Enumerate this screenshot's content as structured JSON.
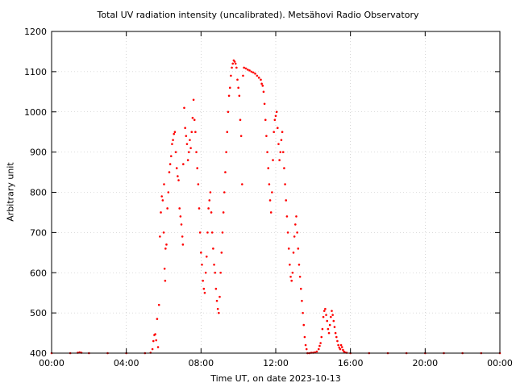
{
  "chart_data": {
    "type": "scatter",
    "title": "Total UV radiation intensity (uncalibrated). Metsähovi Radio Observatory",
    "xlabel": "Time UT, on date 2023-10-13",
    "ylabel": "Arbitrary unit",
    "xlim": [
      0,
      24
    ],
    "ylim": [
      400,
      1200
    ],
    "x_unit": "hours UT",
    "x_ticks": [
      0,
      4,
      8,
      12,
      16,
      20,
      24
    ],
    "x_tick_labels": [
      "00:00",
      "04:00",
      "08:00",
      "12:00",
      "16:00",
      "20:00",
      "00:00"
    ],
    "y_ticks": [
      400,
      500,
      600,
      700,
      800,
      900,
      1000,
      1100,
      1200
    ],
    "y_tick_labels": [
      "400",
      "500",
      "600",
      "700",
      "800",
      "900",
      "1000",
      "1100",
      "1200"
    ],
    "grid": true,
    "legend": "none",
    "series": [
      {
        "color": "#ff0000",
        "points": [
          [
            0.0,
            400
          ],
          [
            1.0,
            400
          ],
          [
            1.4,
            401
          ],
          [
            1.5,
            402
          ],
          [
            1.6,
            401
          ],
          [
            2.0,
            400
          ],
          [
            3.0,
            400
          ],
          [
            4.0,
            400
          ],
          [
            5.0,
            400
          ],
          [
            5.3,
            401
          ],
          [
            5.4,
            410
          ],
          [
            5.45,
            430
          ],
          [
            5.5,
            445
          ],
          [
            5.55,
            447
          ],
          [
            5.6,
            432
          ],
          [
            5.65,
            485
          ],
          [
            5.7,
            415
          ],
          [
            5.75,
            520
          ],
          [
            5.8,
            690
          ],
          [
            5.85,
            750
          ],
          [
            5.9,
            790
          ],
          [
            5.95,
            780
          ],
          [
            6.0,
            700
          ],
          [
            6.02,
            820
          ],
          [
            6.05,
            610
          ],
          [
            6.08,
            580
          ],
          [
            6.1,
            660
          ],
          [
            6.15,
            670
          ],
          [
            6.2,
            760
          ],
          [
            6.25,
            800
          ],
          [
            6.3,
            850
          ],
          [
            6.35,
            870
          ],
          [
            6.4,
            890
          ],
          [
            6.45,
            920
          ],
          [
            6.5,
            930
          ],
          [
            6.55,
            945
          ],
          [
            6.6,
            950
          ],
          [
            6.65,
            900
          ],
          [
            6.7,
            860
          ],
          [
            6.75,
            840
          ],
          [
            6.8,
            830
          ],
          [
            6.85,
            760
          ],
          [
            6.9,
            740
          ],
          [
            6.95,
            720
          ],
          [
            7.0,
            690
          ],
          [
            7.03,
            670
          ],
          [
            7.05,
            870
          ],
          [
            7.1,
            1010
          ],
          [
            7.15,
            960
          ],
          [
            7.2,
            940
          ],
          [
            7.25,
            920
          ],
          [
            7.3,
            880
          ],
          [
            7.35,
            900
          ],
          [
            7.4,
            930
          ],
          [
            7.45,
            910
          ],
          [
            7.5,
            950
          ],
          [
            7.55,
            985
          ],
          [
            7.6,
            1030
          ],
          [
            7.65,
            980
          ],
          [
            7.7,
            950
          ],
          [
            7.75,
            900
          ],
          [
            7.8,
            860
          ],
          [
            7.85,
            820
          ],
          [
            7.9,
            760
          ],
          [
            7.95,
            700
          ],
          [
            8.0,
            650
          ],
          [
            8.05,
            620
          ],
          [
            8.1,
            580
          ],
          [
            8.15,
            560
          ],
          [
            8.2,
            550
          ],
          [
            8.25,
            600
          ],
          [
            8.3,
            640
          ],
          [
            8.35,
            700
          ],
          [
            8.4,
            760
          ],
          [
            8.45,
            780
          ],
          [
            8.5,
            800
          ],
          [
            8.55,
            750
          ],
          [
            8.6,
            700
          ],
          [
            8.65,
            660
          ],
          [
            8.7,
            620
          ],
          [
            8.75,
            600
          ],
          [
            8.8,
            560
          ],
          [
            8.85,
            530
          ],
          [
            8.9,
            510
          ],
          [
            8.95,
            500
          ],
          [
            9.0,
            540
          ],
          [
            9.05,
            600
          ],
          [
            9.1,
            650
          ],
          [
            9.15,
            700
          ],
          [
            9.2,
            750
          ],
          [
            9.25,
            800
          ],
          [
            9.3,
            850
          ],
          [
            9.35,
            900
          ],
          [
            9.4,
            950
          ],
          [
            9.45,
            1000
          ],
          [
            9.5,
            1040
          ],
          [
            9.55,
            1060
          ],
          [
            9.6,
            1090
          ],
          [
            9.65,
            1110
          ],
          [
            9.7,
            1120
          ],
          [
            9.75,
            1128
          ],
          [
            9.8,
            1125
          ],
          [
            9.85,
            1120
          ],
          [
            9.9,
            1110
          ],
          [
            9.95,
            1080
          ],
          [
            10.0,
            1060
          ],
          [
            10.05,
            1040
          ],
          [
            10.1,
            980
          ],
          [
            10.15,
            940
          ],
          [
            10.2,
            820
          ],
          [
            10.25,
            1090
          ],
          [
            10.3,
            1110
          ],
          [
            10.4,
            1108
          ],
          [
            10.5,
            1105
          ],
          [
            10.6,
            1103
          ],
          [
            10.7,
            1100
          ],
          [
            10.8,
            1098
          ],
          [
            10.9,
            1095
          ],
          [
            11.0,
            1090
          ],
          [
            11.1,
            1085
          ],
          [
            11.2,
            1080
          ],
          [
            11.25,
            1070
          ],
          [
            11.3,
            1065
          ],
          [
            11.35,
            1050
          ],
          [
            11.4,
            1020
          ],
          [
            11.45,
            980
          ],
          [
            11.5,
            940
          ],
          [
            11.55,
            900
          ],
          [
            11.6,
            860
          ],
          [
            11.65,
            820
          ],
          [
            11.7,
            780
          ],
          [
            11.75,
            750
          ],
          [
            11.8,
            800
          ],
          [
            11.85,
            880
          ],
          [
            11.9,
            950
          ],
          [
            11.95,
            980
          ],
          [
            12.0,
            990
          ],
          [
            12.05,
            1000
          ],
          [
            12.1,
            960
          ],
          [
            12.15,
            920
          ],
          [
            12.2,
            880
          ],
          [
            12.25,
            900
          ],
          [
            12.3,
            930
          ],
          [
            12.35,
            950
          ],
          [
            12.4,
            900
          ],
          [
            12.45,
            860
          ],
          [
            12.5,
            820
          ],
          [
            12.55,
            780
          ],
          [
            12.6,
            740
          ],
          [
            12.65,
            700
          ],
          [
            12.7,
            660
          ],
          [
            12.75,
            620
          ],
          [
            12.8,
            590
          ],
          [
            12.85,
            580
          ],
          [
            12.9,
            600
          ],
          [
            12.95,
            650
          ],
          [
            13.0,
            690
          ],
          [
            13.05,
            720
          ],
          [
            13.1,
            740
          ],
          [
            13.15,
            700
          ],
          [
            13.2,
            660
          ],
          [
            13.25,
            620
          ],
          [
            13.3,
            590
          ],
          [
            13.35,
            560
          ],
          [
            13.4,
            530
          ],
          [
            13.45,
            500
          ],
          [
            13.5,
            470
          ],
          [
            13.55,
            440
          ],
          [
            13.6,
            420
          ],
          [
            13.65,
            410
          ],
          [
            13.7,
            400
          ],
          [
            13.8,
            400
          ],
          [
            13.9,
            401
          ],
          [
            14.0,
            401
          ],
          [
            14.1,
            402
          ],
          [
            14.2,
            404
          ],
          [
            14.3,
            410
          ],
          [
            14.35,
            418
          ],
          [
            14.4,
            425
          ],
          [
            14.45,
            440
          ],
          [
            14.5,
            460
          ],
          [
            14.55,
            490
          ],
          [
            14.6,
            505
          ],
          [
            14.65,
            510
          ],
          [
            14.7,
            495
          ],
          [
            14.75,
            480
          ],
          [
            14.8,
            460
          ],
          [
            14.85,
            450
          ],
          [
            14.9,
            470
          ],
          [
            14.95,
            490
          ],
          [
            15.0,
            505
          ],
          [
            15.05,
            495
          ],
          [
            15.1,
            480
          ],
          [
            15.15,
            465
          ],
          [
            15.2,
            450
          ],
          [
            15.25,
            440
          ],
          [
            15.3,
            430
          ],
          [
            15.35,
            420
          ],
          [
            15.4,
            414
          ],
          [
            15.45,
            410
          ],
          [
            15.5,
            420
          ],
          [
            15.55,
            415
          ],
          [
            15.6,
            408
          ],
          [
            15.65,
            404
          ],
          [
            15.7,
            402
          ],
          [
            15.8,
            401
          ],
          [
            16.0,
            400
          ],
          [
            17.0,
            400
          ],
          [
            18.0,
            400
          ],
          [
            19.0,
            400
          ],
          [
            20.0,
            400
          ],
          [
            21.0,
            400
          ],
          [
            22.0,
            400
          ],
          [
            23.0,
            400
          ],
          [
            24.0,
            400
          ]
        ]
      }
    ]
  }
}
